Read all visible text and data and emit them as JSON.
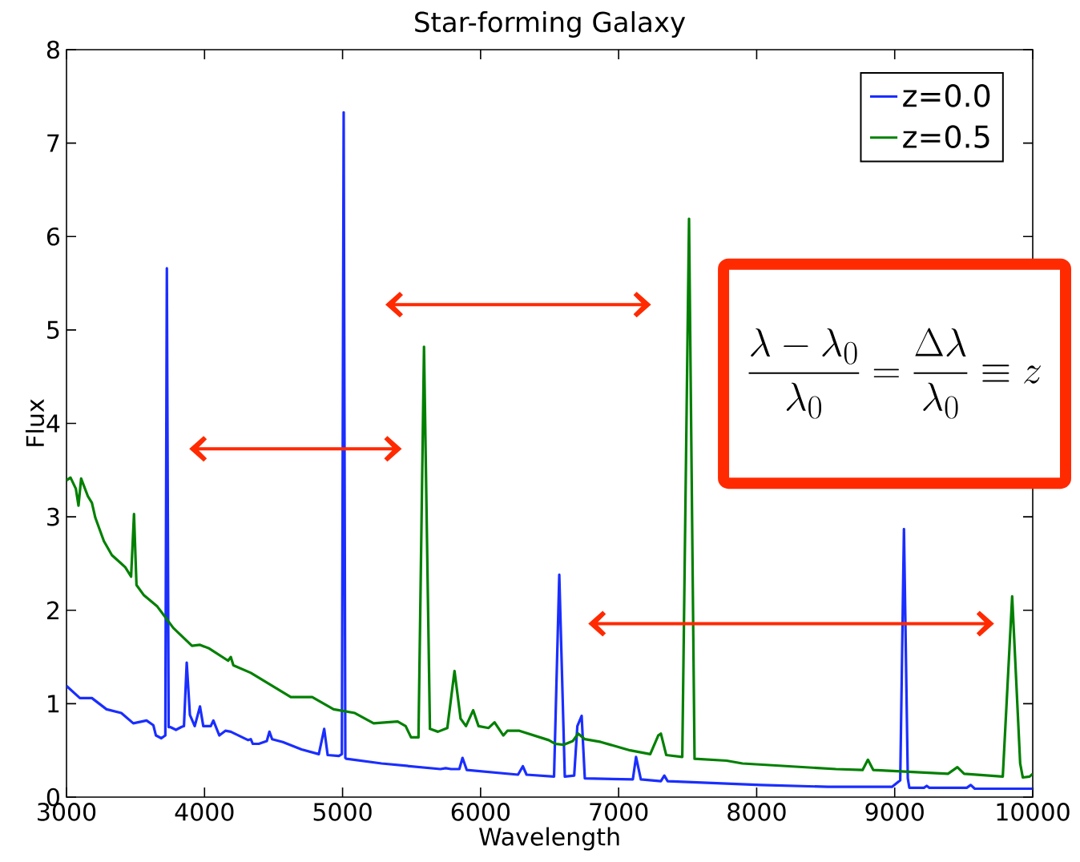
{
  "chart_data": {
    "type": "line",
    "title": "Star-forming Galaxy",
    "xlabel": "Wavelength",
    "ylabel": "Flux",
    "xlim": [
      3000,
      10000
    ],
    "ylim": [
      0,
      8
    ],
    "xticks": [
      3000,
      4000,
      5000,
      6000,
      7000,
      8000,
      9000,
      10000
    ],
    "yticks": [
      0,
      1,
      2,
      3,
      4,
      5,
      6,
      7,
      8
    ],
    "legend": "top right",
    "grid": false,
    "annotations": [
      "\\frac{\\lambda-\\lambda_0}{\\lambda_0}=\\frac{\\Delta\\lambda}{\\lambda_0}\\equiv z"
    ],
    "series": [
      {
        "name": "z=0.0",
        "color": "#1a2eff",
        "x": [
          3000,
          3097,
          3184,
          3290,
          3397,
          3484,
          3580,
          3629,
          3648,
          3687,
          3716,
          3727,
          3740,
          3751,
          3793,
          3832,
          3851,
          3871,
          3894,
          3929,
          3967,
          3991,
          4045,
          4064,
          4107,
          4151,
          4190,
          4316,
          4335,
          4350,
          4393,
          4451,
          4470,
          4490,
          4567,
          4703,
          4828,
          4867,
          4892,
          4973,
          4995,
          5008,
          5020,
          5028,
          5283,
          5709,
          5747,
          5786,
          5846,
          5869,
          5900,
          6271,
          6306,
          6333,
          6532,
          6570,
          6610,
          6678,
          6701,
          6732,
          6755,
          7103,
          7126,
          7161,
          7306,
          7331,
          7355,
          8032,
          8516,
          8980,
          9040,
          9067,
          9095,
          9106,
          9212,
          9232,
          9251,
          9522,
          9551,
          9580,
          10000
        ],
        "values": [
          1.19,
          1.06,
          1.06,
          0.94,
          0.9,
          0.79,
          0.82,
          0.77,
          0.66,
          0.63,
          0.66,
          5.66,
          0.75,
          0.75,
          0.72,
          0.75,
          0.76,
          1.44,
          0.88,
          0.76,
          0.97,
          0.76,
          0.76,
          0.82,
          0.66,
          0.71,
          0.7,
          0.61,
          0.62,
          0.57,
          0.57,
          0.6,
          0.7,
          0.62,
          0.59,
          0.51,
          0.46,
          0.73,
          0.45,
          0.44,
          0.46,
          7.33,
          0.42,
          0.41,
          0.36,
          0.3,
          0.31,
          0.3,
          0.3,
          0.42,
          0.29,
          0.24,
          0.33,
          0.24,
          0.22,
          2.38,
          0.22,
          0.23,
          0.76,
          0.87,
          0.2,
          0.19,
          0.43,
          0.19,
          0.17,
          0.23,
          0.17,
          0.13,
          0.11,
          0.11,
          0.18,
          2.87,
          0.2,
          0.1,
          0.1,
          0.12,
          0.1,
          0.1,
          0.13,
          0.09,
          0.09
        ]
      },
      {
        "name": "z=0.5",
        "color": "#008000",
        "x": [
          3000,
          3029,
          3068,
          3087,
          3106,
          3155,
          3184,
          3209,
          3271,
          3329,
          3397,
          3426,
          3468,
          3489,
          3507,
          3561,
          3658,
          3774,
          3909,
          3967,
          4035,
          4171,
          4190,
          4209,
          4335,
          4625,
          4780,
          4935,
          5089,
          5225,
          5399,
          5457,
          5496,
          5550,
          5590,
          5633,
          5691,
          5759,
          5811,
          5855,
          5894,
          5946,
          5985,
          6058,
          6101,
          6165,
          6194,
          6281,
          6494,
          6542,
          6600,
          6668,
          6707,
          6755,
          6871,
          7084,
          7229,
          7287,
          7306,
          7345,
          7461,
          7510,
          7550,
          7782,
          7897,
          8574,
          8767,
          8806,
          8845,
          9386,
          9454,
          9503,
          9783,
          9851,
          9909,
          9928,
          9977,
          10000
        ],
        "values": [
          3.39,
          3.42,
          3.3,
          3.12,
          3.41,
          3.22,
          3.15,
          2.99,
          2.74,
          2.59,
          2.5,
          2.46,
          2.36,
          3.03,
          2.27,
          2.16,
          2.04,
          1.81,
          1.62,
          1.63,
          1.59,
          1.46,
          1.5,
          1.41,
          1.33,
          1.07,
          1.07,
          0.94,
          0.9,
          0.79,
          0.81,
          0.76,
          0.64,
          0.64,
          4.82,
          0.73,
          0.7,
          0.74,
          1.35,
          0.84,
          0.76,
          0.93,
          0.76,
          0.74,
          0.8,
          0.66,
          0.71,
          0.71,
          0.61,
          0.57,
          0.56,
          0.6,
          0.68,
          0.62,
          0.59,
          0.5,
          0.46,
          0.66,
          0.68,
          0.45,
          0.43,
          6.19,
          0.41,
          0.39,
          0.36,
          0.3,
          0.29,
          0.4,
          0.29,
          0.25,
          0.32,
          0.25,
          0.22,
          2.15,
          0.36,
          0.21,
          0.22,
          0.25
        ]
      }
    ]
  }
}
